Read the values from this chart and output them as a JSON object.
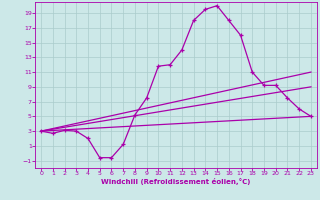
{
  "xlabel": "Windchill (Refroidissement éolien,°C)",
  "background_color": "#cce8e8",
  "line_color": "#aa00aa",
  "xlim": [
    -0.5,
    23.5
  ],
  "ylim": [
    -2.0,
    20.5
  ],
  "xticks": [
    0,
    1,
    2,
    3,
    4,
    5,
    6,
    7,
    8,
    9,
    10,
    11,
    12,
    13,
    14,
    15,
    16,
    17,
    18,
    19,
    20,
    21,
    22,
    23
  ],
  "yticks": [
    -1,
    1,
    3,
    5,
    7,
    9,
    11,
    13,
    15,
    17,
    19
  ],
  "curve1_x": [
    0,
    1,
    2,
    3,
    4,
    5,
    6,
    7,
    8,
    9,
    10,
    11,
    12,
    13,
    14,
    15,
    16,
    17,
    18,
    19,
    20,
    21,
    22,
    23
  ],
  "curve1_y": [
    3.0,
    2.7,
    3.1,
    3.0,
    2.0,
    -0.6,
    -0.6,
    1.2,
    5.2,
    7.5,
    11.8,
    12.0,
    14.0,
    18.0,
    19.5,
    20.0,
    18.0,
    16.0,
    11.0,
    9.2,
    9.2,
    7.5,
    6.0,
    5.0
  ],
  "curve2_x": [
    0,
    23
  ],
  "curve2_y": [
    3.0,
    11.0
  ],
  "curve3_x": [
    0,
    23
  ],
  "curve3_y": [
    3.0,
    9.0
  ],
  "curve4_x": [
    0,
    23
  ],
  "curve4_y": [
    3.0,
    5.0
  ],
  "grid_color": "#aacccc",
  "font_color": "#aa00aa"
}
